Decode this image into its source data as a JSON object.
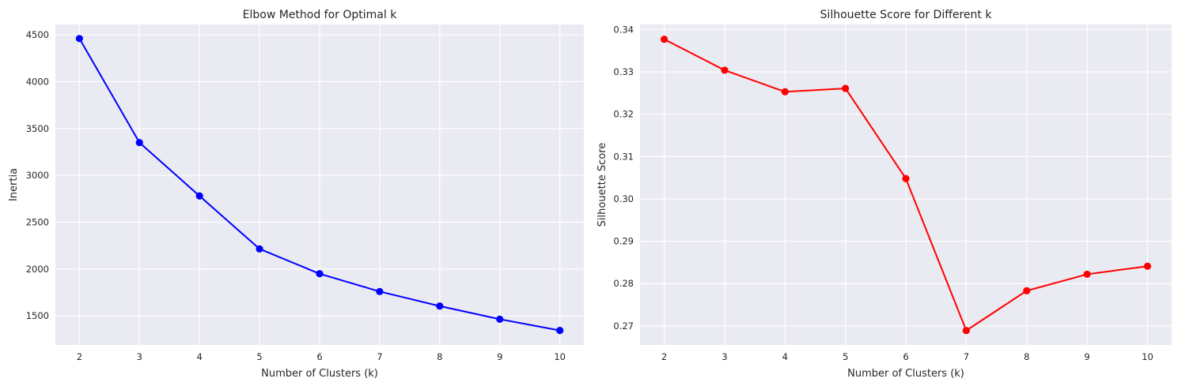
{
  "chart_data": [
    {
      "type": "line",
      "title": "Elbow Method for Optimal k",
      "xlabel": "Number of Clusters (k)",
      "ylabel": "Inertia",
      "x": [
        2,
        3,
        4,
        5,
        6,
        7,
        8,
        9,
        10
      ],
      "xticks": [
        "2",
        "3",
        "4",
        "5",
        "6",
        "7",
        "8",
        "9",
        "10"
      ],
      "yticks": [
        "1500",
        "2000",
        "2500",
        "3000",
        "3500",
        "4000",
        "4500"
      ],
      "ylim": [
        1190,
        4610
      ],
      "xlim": [
        1.6,
        10.4
      ],
      "series": [
        {
          "values": [
            4460,
            3350,
            2780,
            2215,
            1950,
            1760,
            1605,
            1465,
            1345
          ],
          "color": "#0000ff",
          "marker": "circle"
        }
      ],
      "grid": true,
      "legend": "none"
    },
    {
      "type": "line",
      "title": "Silhouette Score for Different k",
      "xlabel": "Number of Clusters (k)",
      "ylabel": "Silhouette Score",
      "x": [
        2,
        3,
        4,
        5,
        6,
        7,
        8,
        9,
        10
      ],
      "xticks": [
        "2",
        "3",
        "4",
        "5",
        "6",
        "7",
        "8",
        "9",
        "10"
      ],
      "yticks": [
        "0.27",
        "0.28",
        "0.29",
        "0.30",
        "0.31",
        "0.32",
        "0.33",
        "0.34"
      ],
      "ylim": [
        0.2655,
        0.3412
      ],
      "xlim": [
        1.6,
        10.4
      ],
      "series": [
        {
          "values": [
            0.3377,
            0.3304,
            0.3253,
            0.3261,
            0.3048,
            0.2689,
            0.2783,
            0.2822,
            0.2841
          ],
          "color": "#ff0000",
          "marker": "circle"
        }
      ],
      "grid": true,
      "legend": "none"
    }
  ]
}
